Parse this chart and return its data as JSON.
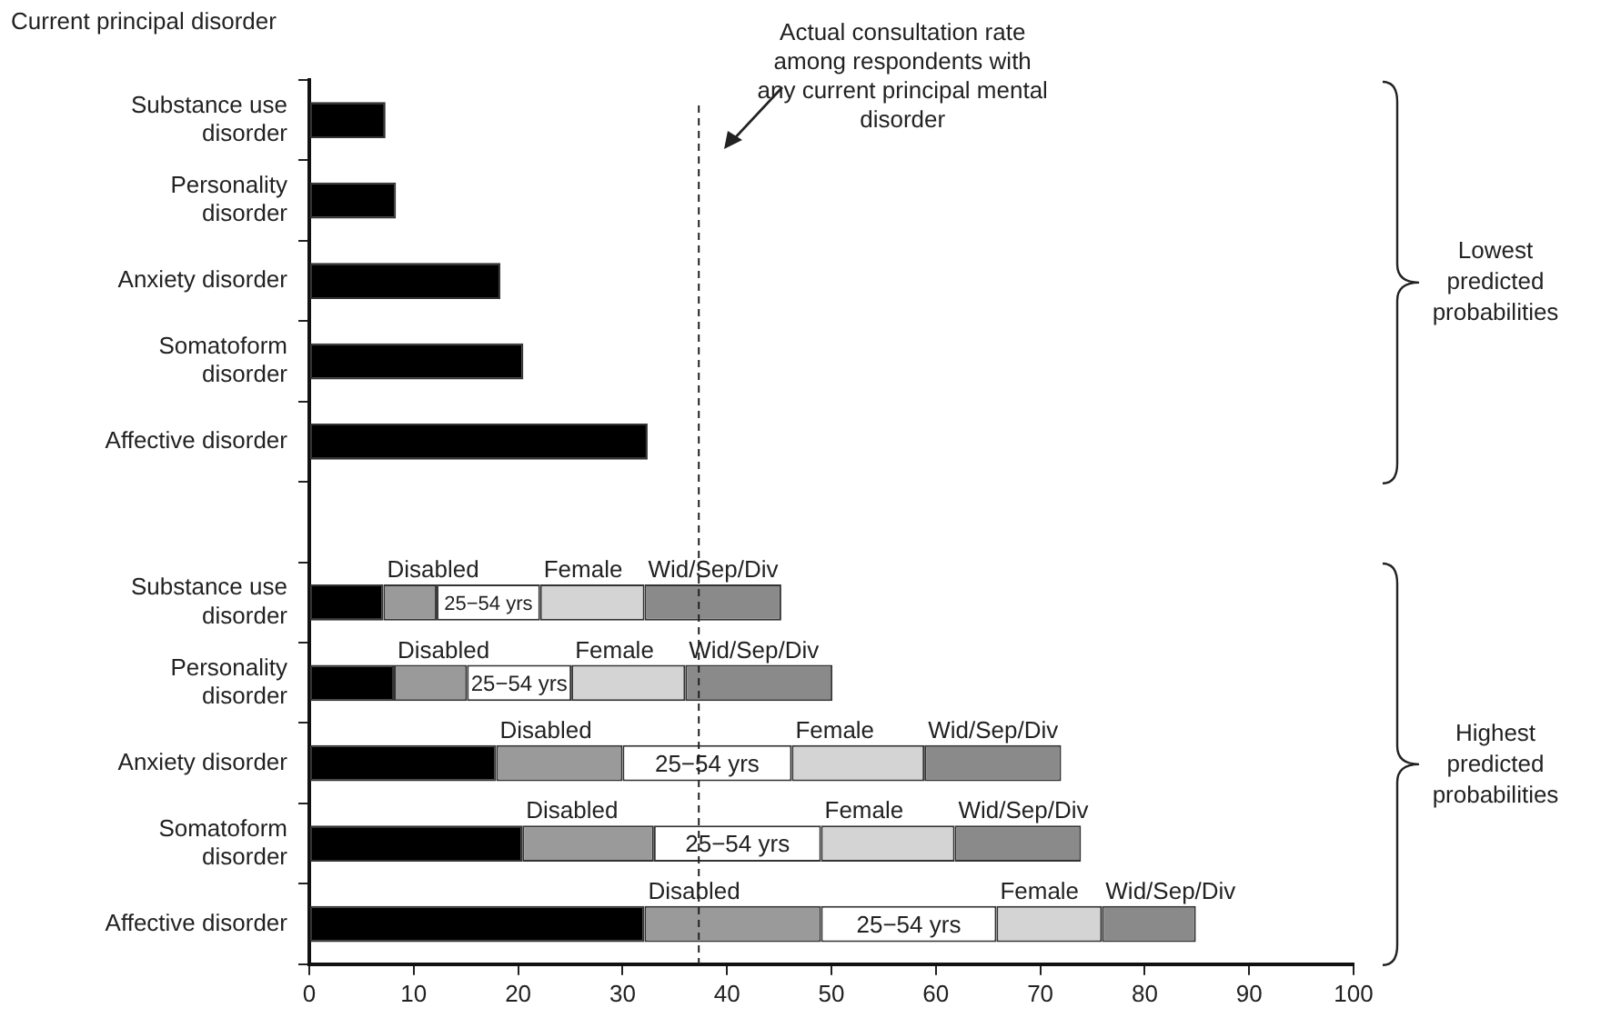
{
  "chart_data": {
    "type": "bar",
    "orientation": "horizontal",
    "stacked": true,
    "ylabel": "Current principal disorder",
    "categories": [
      "Substance use disorder",
      "Personality disorder",
      "Anxiety disorder",
      "Somatoform disorder",
      "Affective disorder",
      null,
      "Substance use disorder",
      "Personality disorder",
      "Anxiety disorder",
      "Somatoform disorder",
      "Affective disorder"
    ],
    "series": [
      {
        "color": "#000000",
        "values": [
          7.3,
          8.3,
          18.3,
          20.5,
          32.4,
          null,
          7.1,
          8.1,
          17.9,
          20.4,
          32.1
        ]
      },
      {
        "name": "Disabled",
        "color": "#9a9a9a",
        "values": [
          null,
          null,
          null,
          null,
          null,
          null,
          5.1,
          7.0,
          12.1,
          12.6,
          16.9
        ]
      },
      {
        "name": "25−54 yrs",
        "color": "#ffffff",
        "values": [
          null,
          null,
          null,
          null,
          null,
          null,
          9.9,
          10.0,
          16.2,
          16.0,
          16.8
        ]
      },
      {
        "name": "Female",
        "color": "#d4d4d4",
        "values": [
          null,
          null,
          null,
          null,
          null,
          null,
          10.0,
          10.9,
          12.7,
          12.8,
          10.1
        ]
      },
      {
        "name": "Wid/Sep/Div",
        "color": "#8a8a8a",
        "values": [
          null,
          null,
          null,
          null,
          null,
          null,
          13.1,
          14.1,
          13.1,
          12.1,
          9.0
        ]
      }
    ],
    "xlim": [
      0,
      100
    ],
    "xticks": [
      0,
      10,
      20,
      30,
      40,
      50,
      60,
      70,
      80,
      90,
      100
    ],
    "ref_lines": [
      {
        "axis": "x",
        "value": 37.3,
        "label": "Actual consultation rate among respondents with any current principal mental disorder",
        "line_style": "dashed"
      }
    ],
    "annotations": [
      "Lowest predicted probabilities",
      "Highest predicted probabilities"
    ],
    "grid": false,
    "legend": false
  }
}
